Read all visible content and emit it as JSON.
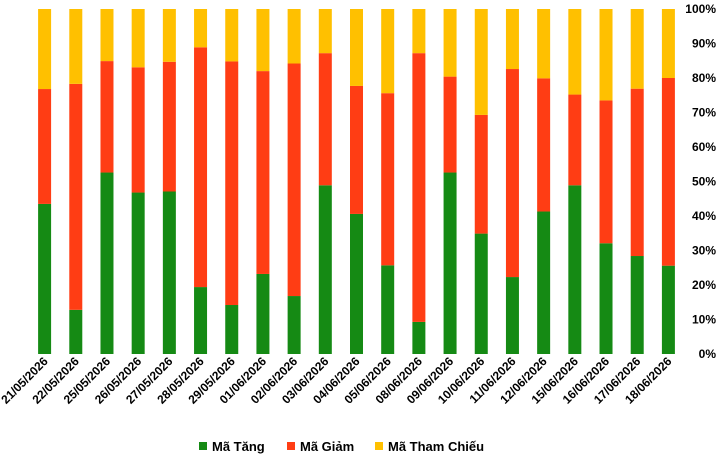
{
  "chart_data": {
    "type": "bar",
    "stacked": true,
    "percent": true,
    "categories": [
      "21/05/2026",
      "22/05/2026",
      "25/05/2026",
      "26/05/2026",
      "27/05/2026",
      "28/05/2026",
      "29/05/2026",
      "01/06/2026",
      "02/06/2026",
      "03/06/2026",
      "04/06/2026",
      "05/06/2026",
      "08/06/2026",
      "09/06/2026",
      "10/06/2026",
      "11/06/2026",
      "12/06/2026",
      "15/06/2026",
      "16/06/2026",
      "17/06/2026",
      "18/06/2026"
    ],
    "series": [
      {
        "name": "Mã Tăng",
        "color": "#158a14",
        "values": [
          43.5,
          12.8,
          52.6,
          46.8,
          47.1,
          19.4,
          14.2,
          23.2,
          16.8,
          48.9,
          40.6,
          25.7,
          9.3,
          52.6,
          34.9,
          22.3,
          41.3,
          48.9,
          32.1,
          28.4,
          25.6
        ]
      },
      {
        "name": "Mã Giảm",
        "color": "#ff3d14",
        "values": [
          33.3,
          65.5,
          32.3,
          36.3,
          37.6,
          69.5,
          70.6,
          58.8,
          67.4,
          38.3,
          37.1,
          49.9,
          77.9,
          27.8,
          34.4,
          60.3,
          38.6,
          26.3,
          41.4,
          48.5,
          54.4
        ]
      },
      {
        "name": "Mã Tham Chiếu",
        "color": "#ffc000",
        "values": [
          23.2,
          21.7,
          15.1,
          16.9,
          15.3,
          11.1,
          15.2,
          18.0,
          15.8,
          12.8,
          22.3,
          24.4,
          12.8,
          19.6,
          30.7,
          17.4,
          20.1,
          24.8,
          26.5,
          23.1,
          20.0
        ]
      }
    ],
    "yaxis": {
      "position": "right",
      "ylim": [
        0,
        100
      ],
      "ticks": [
        "0%",
        "10%",
        "20%",
        "30%",
        "40%",
        "50%",
        "60%",
        "70%",
        "80%",
        "90%",
        "100%"
      ]
    },
    "legend": "bottom",
    "grid": false
  }
}
